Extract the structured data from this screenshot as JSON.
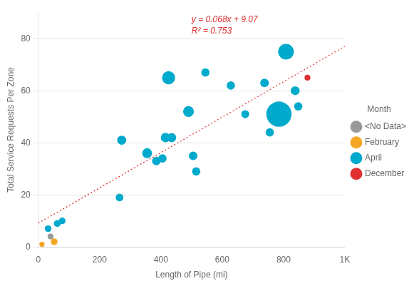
{
  "chart_data": {
    "type": "scatter",
    "xlabel": "Length of Pipe (mi)",
    "ylabel": "Total Service Requests Per Zone",
    "xlim": [
      0,
      1000
    ],
    "ylim": [
      0,
      90
    ],
    "xticks": [
      0,
      200,
      400,
      600,
      800,
      {
        "value": 1000,
        "label": "1K"
      }
    ],
    "yticks": [
      0,
      20,
      40,
      60,
      80
    ],
    "grid": "y",
    "legend": "right",
    "legend_title": "Month",
    "series": [
      {
        "name": "<No Data>",
        "color": "#999999",
        "x": [
          40
        ],
        "values": [
          4
        ],
        "sizes": [
          35
        ]
      },
      {
        "name": "February",
        "color": "#f5a623",
        "x": [
          12,
          52
        ],
        "values": [
          1,
          2
        ],
        "sizes": [
          28,
          45
        ]
      },
      {
        "name": "April",
        "color": "#00aacc",
        "x": [
          32,
          62,
          78,
          265,
          272,
          355,
          385,
          405,
          415,
          425,
          435,
          490,
          505,
          515,
          545,
          628,
          675,
          738,
          755,
          785,
          808,
          838,
          848
        ],
        "values": [
          7,
          9,
          10,
          19,
          41,
          36,
          33,
          34,
          42,
          65,
          42,
          52,
          35,
          29,
          67,
          62,
          51,
          63,
          44,
          51,
          75,
          60,
          54
        ],
        "sizes": [
          45,
          50,
          45,
          60,
          85,
          100,
          75,
          70,
          90,
          175,
          85,
          120,
          75,
          70,
          70,
          70,
          65,
          75,
          70,
          650,
          250,
          80,
          70
        ]
      },
      {
        "name": "December",
        "color": "#e03030",
        "x": [
          878
        ],
        "values": [
          65
        ],
        "sizes": [
          35
        ]
      }
    ],
    "trendline": {
      "x": [
        0,
        1000
      ],
      "values": [
        9.07,
        77.07
      ],
      "color": "#e03030",
      "line_style": "dotted"
    },
    "annotations": [
      "y = 0.068x + 9.07",
      "R² = 0.753"
    ]
  }
}
